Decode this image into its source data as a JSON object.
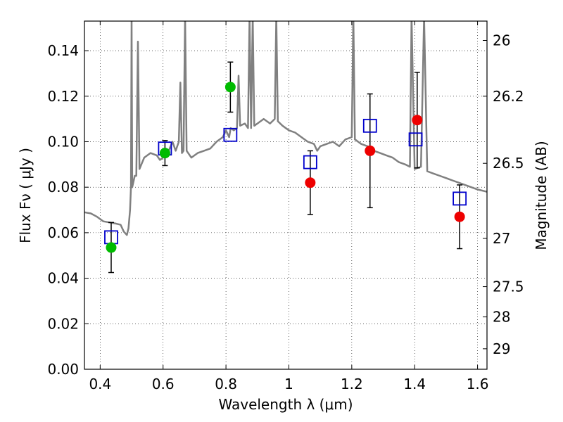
{
  "chart_data": {
    "type": "scatter",
    "xlabel": "Wavelength  λ (μm)",
    "ylabel": "Flux  Fν  ( μJy )",
    "ylabel_right": "Magnitude (AB)",
    "xlim": [
      0.35,
      1.63
    ],
    "ylim": [
      0.0,
      0.153
    ],
    "grid": true,
    "x_ticks": [
      {
        "value": 0.4,
        "label": "0.4"
      },
      {
        "value": 0.6,
        "label": "0.6"
      },
      {
        "value": 0.8,
        "label": "0.8"
      },
      {
        "value": 1.0,
        "label": "1"
      },
      {
        "value": 1.2,
        "label": "1.2"
      },
      {
        "value": 1.4,
        "label": "1.4"
      },
      {
        "value": 1.6,
        "label": "1.6"
      }
    ],
    "y_ticks": [
      {
        "value": 0.0,
        "label": "0.00"
      },
      {
        "value": 0.02,
        "label": "0.02"
      },
      {
        "value": 0.04,
        "label": "0.04"
      },
      {
        "value": 0.06,
        "label": "0.06"
      },
      {
        "value": 0.08,
        "label": "0.08"
      },
      {
        "value": 0.1,
        "label": "0.10"
      },
      {
        "value": 0.12,
        "label": "0.12"
      },
      {
        "value": 0.14,
        "label": "0.14"
      }
    ],
    "y2_ticks": [
      {
        "flux": 0.1445,
        "label": "26"
      },
      {
        "flux": 0.12,
        "label": "26.2"
      },
      {
        "flux": 0.0905,
        "label": "26.5"
      },
      {
        "flux": 0.0575,
        "label": "27"
      },
      {
        "flux": 0.0363,
        "label": "27.5"
      },
      {
        "flux": 0.023,
        "label": "28"
      },
      {
        "flux": 0.009,
        "label": "29"
      }
    ],
    "series": [
      {
        "marker": "circle",
        "color": "#00bb00",
        "errorbars": true,
        "points": [
          {
            "x": 0.435,
            "y": 0.0535,
            "err_lo": 0.011,
            "err_hi": 0.011
          },
          {
            "x": 0.606,
            "y": 0.095,
            "err_lo": 0.0055,
            "err_hi": 0.0055
          },
          {
            "x": 0.814,
            "y": 0.124,
            "err_lo": 0.011,
            "err_hi": 0.011
          }
        ]
      },
      {
        "marker": "circle",
        "color": "#ee0000",
        "errorbars": true,
        "points": [
          {
            "x": 1.068,
            "y": 0.082,
            "err_lo": 0.014,
            "err_hi": 0.014
          },
          {
            "x": 1.258,
            "y": 0.096,
            "err_lo": 0.025,
            "err_hi": 0.025
          },
          {
            "x": 1.408,
            "y": 0.1095,
            "err_lo": 0.021,
            "err_hi": 0.021
          },
          {
            "x": 1.543,
            "y": 0.067,
            "err_lo": 0.014,
            "err_hi": 0.014
          }
        ]
      },
      {
        "marker": "open-square",
        "color": "#0000cc",
        "errorbars": false,
        "points": [
          {
            "x": 0.435,
            "y": 0.058
          },
          {
            "x": 0.606,
            "y": 0.097
          },
          {
            "x": 0.814,
            "y": 0.103
          },
          {
            "x": 1.068,
            "y": 0.091
          },
          {
            "x": 1.258,
            "y": 0.107
          },
          {
            "x": 1.403,
            "y": 0.101
          },
          {
            "x": 1.543,
            "y": 0.075
          }
        ]
      },
      {
        "type": "line",
        "color": "#808080",
        "points": [
          [
            0.35,
            0.069
          ],
          [
            0.37,
            0.0685
          ],
          [
            0.39,
            0.067
          ],
          [
            0.41,
            0.065
          ],
          [
            0.43,
            0.0645
          ],
          [
            0.45,
            0.064
          ],
          [
            0.465,
            0.0635
          ],
          [
            0.475,
            0.0605
          ],
          [
            0.485,
            0.059
          ],
          [
            0.49,
            0.062
          ],
          [
            0.495,
            0.07
          ],
          [
            0.498,
            0.08
          ],
          [
            0.5,
            0.155
          ],
          [
            0.502,
            0.08
          ],
          [
            0.51,
            0.085
          ],
          [
            0.515,
            0.085
          ],
          [
            0.52,
            0.144
          ],
          [
            0.525,
            0.088
          ],
          [
            0.54,
            0.093
          ],
          [
            0.56,
            0.095
          ],
          [
            0.58,
            0.094
          ],
          [
            0.59,
            0.092
          ],
          [
            0.6,
            0.093
          ],
          [
            0.615,
            0.095
          ],
          [
            0.63,
            0.1
          ],
          [
            0.64,
            0.096
          ],
          [
            0.65,
            0.1
          ],
          [
            0.655,
            0.126
          ],
          [
            0.66,
            0.095
          ],
          [
            0.665,
            0.096
          ],
          [
            0.67,
            0.155
          ],
          [
            0.675,
            0.096
          ],
          [
            0.69,
            0.093
          ],
          [
            0.71,
            0.095
          ],
          [
            0.73,
            0.096
          ],
          [
            0.75,
            0.097
          ],
          [
            0.77,
            0.1
          ],
          [
            0.79,
            0.102
          ],
          [
            0.8,
            0.105
          ],
          [
            0.81,
            0.102
          ],
          [
            0.815,
            0.106
          ],
          [
            0.825,
            0.105
          ],
          [
            0.835,
            0.106
          ],
          [
            0.84,
            0.129
          ],
          [
            0.845,
            0.107
          ],
          [
            0.86,
            0.108
          ],
          [
            0.87,
            0.106
          ],
          [
            0.875,
            0.155
          ],
          [
            0.88,
            0.106
          ],
          [
            0.885,
            0.155
          ],
          [
            0.89,
            0.107
          ],
          [
            0.9,
            0.108
          ],
          [
            0.92,
            0.11
          ],
          [
            0.94,
            0.108
          ],
          [
            0.955,
            0.11
          ],
          [
            0.96,
            0.155
          ],
          [
            0.965,
            0.109
          ],
          [
            0.98,
            0.107
          ],
          [
            1.0,
            0.105
          ],
          [
            1.02,
            0.104
          ],
          [
            1.04,
            0.102
          ],
          [
            1.06,
            0.1
          ],
          [
            1.08,
            0.099
          ],
          [
            1.09,
            0.096
          ],
          [
            1.1,
            0.098
          ],
          [
            1.12,
            0.099
          ],
          [
            1.14,
            0.1
          ],
          [
            1.16,
            0.098
          ],
          [
            1.18,
            0.101
          ],
          [
            1.2,
            0.102
          ],
          [
            1.205,
            0.155
          ],
          [
            1.21,
            0.101
          ],
          [
            1.23,
            0.099
          ],
          [
            1.25,
            0.098
          ],
          [
            1.27,
            0.096
          ],
          [
            1.29,
            0.095
          ],
          [
            1.31,
            0.094
          ],
          [
            1.33,
            0.093
          ],
          [
            1.35,
            0.091
          ],
          [
            1.37,
            0.09
          ],
          [
            1.385,
            0.089
          ],
          [
            1.39,
            0.155
          ],
          [
            1.4,
            0.088
          ],
          [
            1.42,
            0.089
          ],
          [
            1.43,
            0.155
          ],
          [
            1.44,
            0.087
          ],
          [
            1.46,
            0.086
          ],
          [
            1.48,
            0.085
          ],
          [
            1.5,
            0.084
          ],
          [
            1.52,
            0.083
          ],
          [
            1.54,
            0.082
          ],
          [
            1.56,
            0.081
          ],
          [
            1.58,
            0.08
          ],
          [
            1.6,
            0.079
          ],
          [
            1.63,
            0.078
          ]
        ]
      }
    ]
  }
}
